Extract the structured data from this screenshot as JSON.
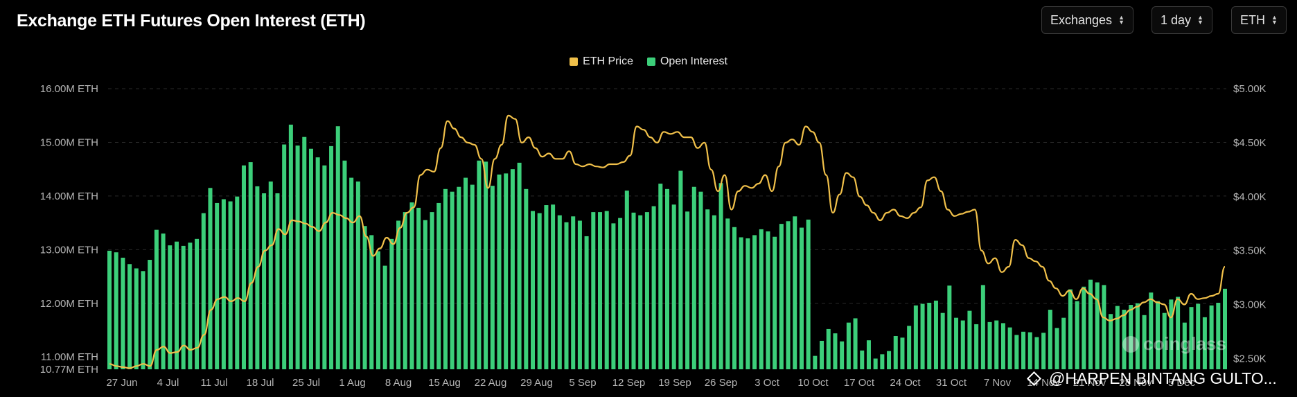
{
  "header": {
    "title": "Exchange ETH Futures Open Interest (ETH)"
  },
  "controls": [
    {
      "label": "Exchanges"
    },
    {
      "label": "1 day"
    },
    {
      "label": "ETH"
    }
  ],
  "watermark": {
    "text": "@HARPEN BINTANG GULTO...",
    "icon": "binance-diamond-icon"
  },
  "logo": {
    "text": "coinglass"
  },
  "colors": {
    "price": "#f0c04a",
    "open_interest": "#3ccf7a",
    "grid": "#2a2a2a",
    "axis_text": "#b5b5b5"
  },
  "chart_data": {
    "type": "bar",
    "legend": {
      "placement": "top-center",
      "entries": [
        "ETH Price",
        "Open Interest"
      ]
    },
    "grid": true,
    "x_labels": [
      "27 Jun",
      "4 Jul",
      "11 Jul",
      "18 Jul",
      "25 Jul",
      "1 Aug",
      "8 Aug",
      "15 Aug",
      "22 Aug",
      "29 Aug",
      "5 Sep",
      "12 Sep",
      "19 Sep",
      "26 Sep",
      "3 Oct",
      "10 Oct",
      "17 Oct",
      "24 Oct",
      "31 Oct",
      "7 Nov",
      "14 Nov",
      "21 Nov",
      "28 Nov",
      "5 Dec"
    ],
    "y_left": {
      "ticks": [
        "16.00M ETH",
        "15.00M ETH",
        "14.00M ETH",
        "13.00M ETH",
        "12.00M ETH",
        "11.00M ETH",
        "10.77M ETH"
      ],
      "tick_values": [
        16.0,
        15.0,
        14.0,
        13.0,
        12.0,
        11.0,
        10.77
      ],
      "range": [
        10.77,
        16.0
      ]
    },
    "y_right": {
      "ticks": [
        "$5.00K",
        "$4.50K",
        "$4.00K",
        "$3.50K",
        "$3.00K",
        "$2.50K"
      ],
      "tick_values": [
        5.0,
        4.5,
        4.0,
        3.5,
        3.0,
        2.5
      ],
      "range": [
        2.4,
        5.0
      ]
    },
    "series": [
      {
        "name": "Open Interest",
        "type": "bar",
        "axis": "left",
        "values": [
          12.98,
          12.95,
          12.85,
          12.73,
          12.65,
          12.6,
          12.81,
          13.37,
          13.3,
          13.08,
          13.15,
          13.07,
          13.13,
          13.2,
          13.68,
          14.15,
          13.87,
          13.94,
          13.9,
          13.99,
          14.57,
          14.63,
          14.18,
          14.05,
          14.27,
          14.05,
          14.96,
          15.33,
          14.94,
          15.1,
          14.88,
          14.72,
          14.57,
          14.93,
          15.3,
          14.66,
          14.34,
          14.27,
          13.44,
          13.27,
          12.97,
          12.7,
          13.2,
          13.54,
          13.7,
          13.88,
          13.78,
          13.55,
          13.7,
          13.87,
          14.13,
          14.08,
          14.17,
          14.34,
          14.21,
          14.66,
          14.64,
          14.19,
          14.4,
          14.42,
          14.5,
          14.62,
          14.13,
          13.72,
          13.68,
          13.83,
          13.84,
          13.64,
          13.51,
          13.62,
          13.54,
          13.25,
          13.7,
          13.7,
          13.72,
          13.49,
          13.59,
          14.1,
          13.69,
          13.64,
          13.7,
          13.81,
          14.23,
          14.13,
          13.84,
          14.47,
          13.71,
          14.17,
          14.08,
          13.75,
          13.64,
          14.24,
          13.58,
          13.42,
          13.23,
          13.21,
          13.27,
          13.38,
          13.34,
          13.24,
          13.48,
          13.53,
          13.62,
          13.41,
          13.56,
          11.02,
          11.3,
          11.52,
          11.44,
          11.29,
          11.64,
          11.72,
          11.12,
          11.31,
          10.97,
          11.05,
          11.11,
          11.39,
          11.36,
          11.58,
          11.96,
          11.99,
          12.01,
          12.05,
          11.82,
          12.33,
          11.73,
          11.68,
          11.86,
          11.61,
          12.34,
          11.65,
          11.68,
          11.63,
          11.55,
          11.41,
          11.47,
          11.46,
          11.37,
          11.45,
          11.88,
          11.54,
          11.73,
          12.26,
          12.04,
          12.31,
          12.44,
          12.39,
          12.34,
          11.8,
          11.95,
          11.88,
          11.97,
          12.0,
          11.78,
          12.2,
          12.04,
          11.82,
          12.07,
          12.12,
          11.64,
          11.93,
          11.99,
          11.74,
          11.96,
          12.01,
          12.27
        ]
      },
      {
        "name": "ETH Price",
        "type": "line",
        "axis": "right",
        "values": [
          2.45,
          2.43,
          2.42,
          2.41,
          2.43,
          2.45,
          2.43,
          2.58,
          2.61,
          2.55,
          2.56,
          2.62,
          2.58,
          2.6,
          2.72,
          2.95,
          3.05,
          3.07,
          3.03,
          3.06,
          3.03,
          3.2,
          3.35,
          3.5,
          3.55,
          3.7,
          3.65,
          3.78,
          3.77,
          3.75,
          3.72,
          3.68,
          3.76,
          3.85,
          3.83,
          3.8,
          3.76,
          3.82,
          3.63,
          3.45,
          3.52,
          3.62,
          3.56,
          3.71,
          3.85,
          3.9,
          4.2,
          4.25,
          4.23,
          4.45,
          4.7,
          4.63,
          4.55,
          4.5,
          4.48,
          4.35,
          4.08,
          4.35,
          4.48,
          4.75,
          4.72,
          4.5,
          4.55,
          4.45,
          4.37,
          4.4,
          4.35,
          4.35,
          4.42,
          4.3,
          4.28,
          4.3,
          4.28,
          4.27,
          4.3,
          4.3,
          4.32,
          4.38,
          4.65,
          4.62,
          4.55,
          4.5,
          4.6,
          4.58,
          4.6,
          4.55,
          4.55,
          4.45,
          4.5,
          4.25,
          4.05,
          4.2,
          3.88,
          4.05,
          4.1,
          4.08,
          4.12,
          4.2,
          4.05,
          4.28,
          4.5,
          4.53,
          4.48,
          4.65,
          4.6,
          4.5,
          4.2,
          3.85,
          4.02,
          4.22,
          4.18,
          4.0,
          3.92,
          3.85,
          3.78,
          3.85,
          3.88,
          3.82,
          3.8,
          3.85,
          3.9,
          4.15,
          4.18,
          4.05,
          3.88,
          3.82,
          3.84,
          3.86,
          3.88,
          3.5,
          3.38,
          3.43,
          3.3,
          3.35,
          3.6,
          3.55,
          3.43,
          3.4,
          3.35,
          3.22,
          3.15,
          3.08,
          3.13,
          3.05,
          3.15,
          3.1,
          3.05,
          2.88,
          2.85,
          2.87,
          2.9,
          2.95,
          2.98,
          3.02,
          3.05,
          3.02,
          3.0,
          2.88,
          3.05,
          3.0,
          3.1,
          3.05,
          3.06,
          3.08,
          3.1,
          3.35
        ]
      }
    ]
  }
}
